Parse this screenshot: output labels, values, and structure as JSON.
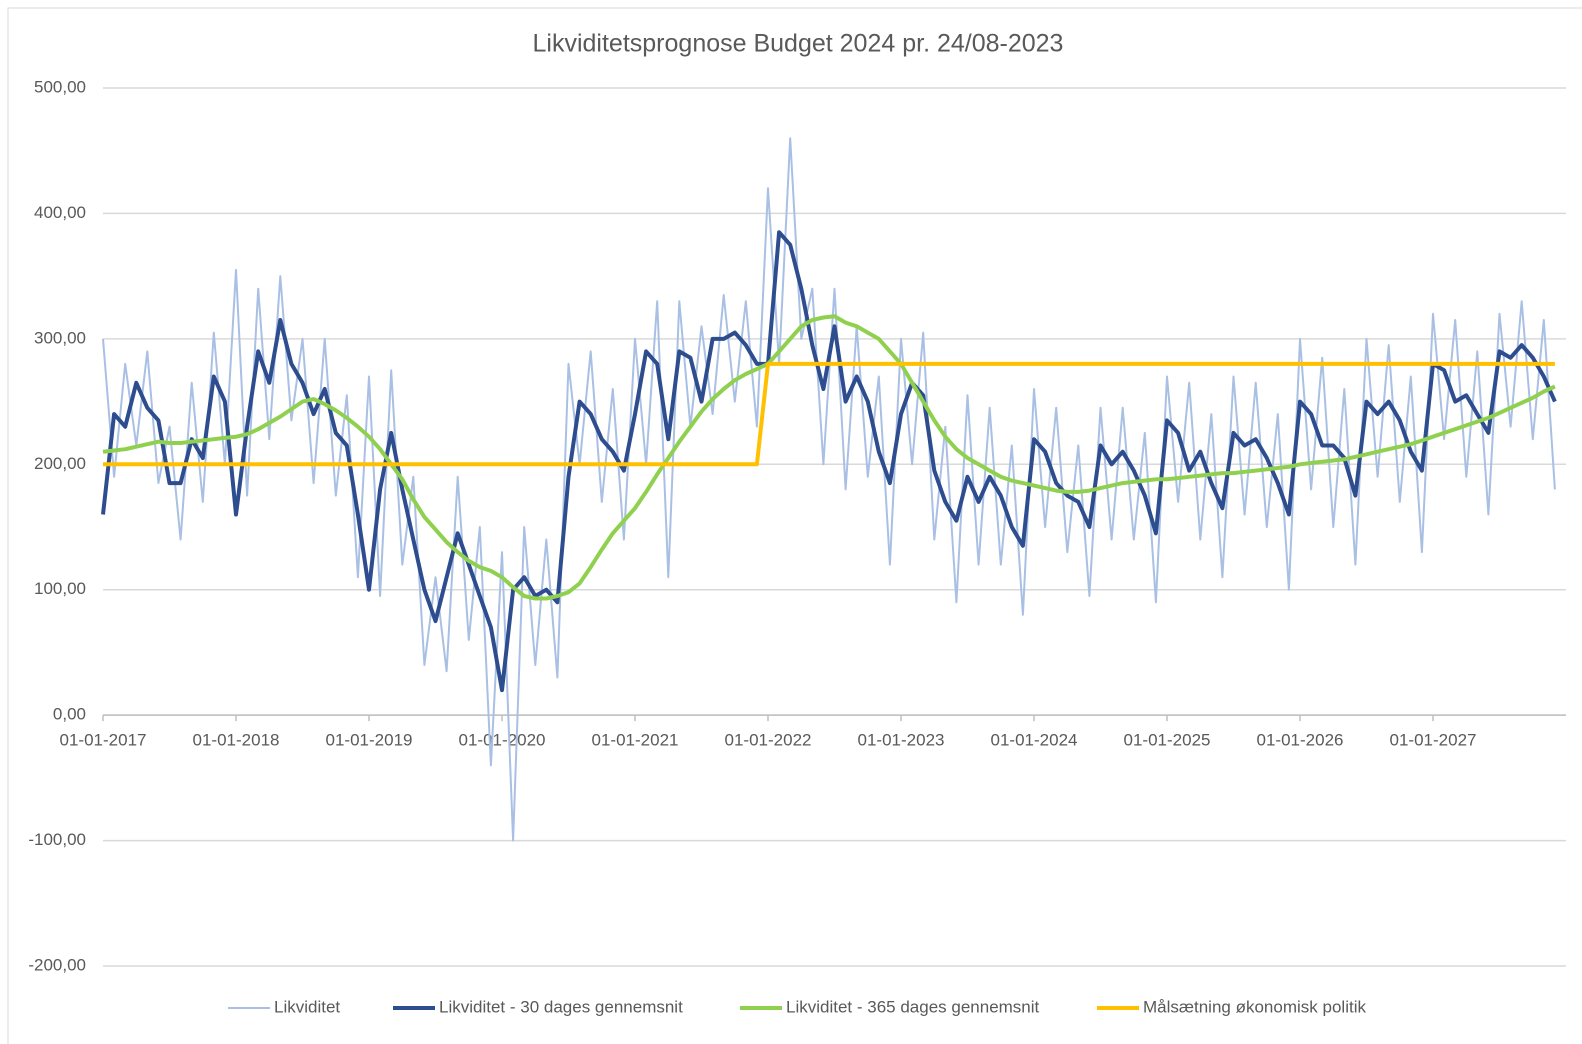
{
  "chart_data": {
    "type": "line",
    "title": "Likviditetsprognose Budget 2024 pr. 24/08-2023",
    "x": [
      "01-01-2017",
      "01-02-2017",
      "01-03-2017",
      "01-04-2017",
      "01-05-2017",
      "01-06-2017",
      "01-07-2017",
      "01-08-2017",
      "01-09-2017",
      "01-10-2017",
      "01-11-2017",
      "01-12-2017",
      "01-01-2018",
      "01-02-2018",
      "01-03-2018",
      "01-04-2018",
      "01-05-2018",
      "01-06-2018",
      "01-07-2018",
      "01-08-2018",
      "01-09-2018",
      "01-10-2018",
      "01-11-2018",
      "01-12-2018",
      "01-01-2019",
      "01-02-2019",
      "01-03-2019",
      "01-04-2019",
      "01-05-2019",
      "01-06-2019",
      "01-07-2019",
      "01-08-2019",
      "01-09-2019",
      "01-10-2019",
      "01-11-2019",
      "01-12-2019",
      "01-01-2020",
      "01-02-2020",
      "01-03-2020",
      "01-04-2020",
      "01-05-2020",
      "01-06-2020",
      "01-07-2020",
      "01-08-2020",
      "01-09-2020",
      "01-10-2020",
      "01-11-2020",
      "01-12-2020",
      "01-01-2021",
      "01-02-2021",
      "01-03-2021",
      "01-04-2021",
      "01-05-2021",
      "01-06-2021",
      "01-07-2021",
      "01-08-2021",
      "01-09-2021",
      "01-10-2021",
      "01-11-2021",
      "01-12-2021",
      "01-01-2022",
      "01-02-2022",
      "01-03-2022",
      "01-04-2022",
      "01-05-2022",
      "01-06-2022",
      "01-07-2022",
      "01-08-2022",
      "01-09-2022",
      "01-10-2022",
      "01-11-2022",
      "01-12-2022",
      "01-01-2023",
      "01-02-2023",
      "01-03-2023",
      "01-04-2023",
      "01-05-2023",
      "01-06-2023",
      "01-07-2023",
      "01-08-2023",
      "01-09-2023",
      "01-10-2023",
      "01-11-2023",
      "01-12-2023",
      "01-01-2024",
      "01-02-2024",
      "01-03-2024",
      "01-04-2024",
      "01-05-2024",
      "01-06-2024",
      "01-07-2024",
      "01-08-2024",
      "01-09-2024",
      "01-10-2024",
      "01-11-2024",
      "01-12-2024",
      "01-01-2025",
      "01-02-2025",
      "01-03-2025",
      "01-04-2025",
      "01-05-2025",
      "01-06-2025",
      "01-07-2025",
      "01-08-2025",
      "01-09-2025",
      "01-10-2025",
      "01-11-2025",
      "01-12-2025",
      "01-01-2026",
      "01-02-2026",
      "01-03-2026",
      "01-04-2026",
      "01-05-2026",
      "01-06-2026",
      "01-07-2026",
      "01-08-2026",
      "01-09-2026",
      "01-10-2026",
      "01-11-2026",
      "01-12-2026",
      "01-01-2027",
      "01-02-2027",
      "01-03-2027",
      "01-04-2027",
      "01-05-2027",
      "01-06-2027",
      "01-07-2027",
      "01-08-2027",
      "01-09-2027",
      "01-10-2027",
      "01-11-2027",
      "01-12-2027"
    ],
    "series": [
      {
        "name": "Likviditet",
        "color": "#a9c0e4",
        "width": 2,
        "values": [
          300,
          190,
          280,
          215,
          290,
          185,
          230,
          140,
          265,
          170,
          305,
          200,
          355,
          175,
          340,
          220,
          350,
          235,
          300,
          185,
          300,
          175,
          255,
          110,
          270,
          95,
          275,
          120,
          190,
          40,
          110,
          35,
          190,
          60,
          150,
          -40,
          130,
          -100,
          150,
          40,
          140,
          30,
          280,
          200,
          290,
          170,
          260,
          140,
          300,
          200,
          330,
          110,
          330,
          230,
          310,
          240,
          335,
          250,
          330,
          230,
          420,
          280,
          460,
          300,
          340,
          200,
          340,
          180,
          310,
          190,
          270,
          120,
          300,
          200,
          305,
          140,
          230,
          90,
          255,
          120,
          245,
          120,
          215,
          80,
          260,
          150,
          245,
          130,
          215,
          95,
          245,
          140,
          245,
          140,
          225,
          90,
          270,
          170,
          265,
          140,
          240,
          110,
          270,
          160,
          265,
          150,
          240,
          100,
          300,
          180,
          285,
          150,
          260,
          120,
          300,
          190,
          295,
          170,
          270,
          130,
          320,
          220,
          315,
          190,
          290,
          160,
          320,
          230,
          330,
          220,
          315,
          180
        ]
      },
      {
        "name": "Likviditet - 30 dages gennemsnit",
        "color": "#2e4d8f",
        "width": 4,
        "values": [
          160,
          240,
          230,
          265,
          245,
          235,
          185,
          185,
          220,
          205,
          270,
          250,
          160,
          230,
          290,
          265,
          315,
          280,
          265,
          240,
          260,
          225,
          215,
          160,
          100,
          180,
          225,
          180,
          140,
          100,
          75,
          110,
          145,
          120,
          95,
          70,
          20,
          100,
          110,
          95,
          100,
          90,
          190,
          250,
          240,
          220,
          210,
          195,
          240,
          290,
          280,
          220,
          290,
          285,
          250,
          300,
          300,
          305,
          295,
          280,
          280,
          385,
          375,
          340,
          295,
          260,
          310,
          250,
          270,
          250,
          210,
          185,
          240,
          265,
          255,
          195,
          170,
          155,
          190,
          170,
          190,
          175,
          150,
          135,
          220,
          210,
          185,
          175,
          170,
          150,
          215,
          200,
          210,
          195,
          175,
          145,
          235,
          225,
          195,
          210,
          185,
          165,
          225,
          215,
          220,
          205,
          185,
          160,
          250,
          240,
          215,
          215,
          205,
          175,
          250,
          240,
          250,
          235,
          210,
          195,
          280,
          275,
          250,
          255,
          240,
          225,
          290,
          285,
          295,
          285,
          270,
          250
        ]
      },
      {
        "name": "Likviditet - 365 dages gennemsnit",
        "color": "#8fd14f",
        "width": 4,
        "values": [
          210,
          211,
          212,
          214,
          216,
          218,
          217,
          217,
          218,
          219,
          220,
          221,
          222,
          224,
          228,
          233,
          238,
          244,
          250,
          252,
          248,
          243,
          237,
          230,
          222,
          212,
          200,
          188,
          172,
          158,
          148,
          138,
          130,
          123,
          118,
          115,
          110,
          102,
          95,
          93,
          93,
          95,
          98,
          105,
          118,
          132,
          145,
          155,
          165,
          178,
          192,
          205,
          218,
          230,
          242,
          252,
          260,
          267,
          272,
          276,
          280,
          290,
          300,
          310,
          315,
          317,
          318,
          313,
          310,
          305,
          300,
          290,
          280,
          265,
          250,
          235,
          222,
          212,
          205,
          200,
          195,
          190,
          187,
          185,
          183,
          181,
          179,
          178,
          178,
          179,
          181,
          183,
          185,
          186,
          187,
          188,
          188,
          189,
          190,
          191,
          192,
          193,
          193,
          194,
          195,
          196,
          197,
          198,
          200,
          201,
          202,
          203,
          204,
          206,
          208,
          210,
          212,
          214,
          216,
          219,
          222,
          225,
          228,
          231,
          234,
          237,
          241,
          245,
          249,
          253,
          258,
          262
        ]
      },
      {
        "name": "Målsætning økonomisk politik",
        "color": "#ffc000",
        "width": 4,
        "values": [
          200,
          200,
          200,
          200,
          200,
          200,
          200,
          200,
          200,
          200,
          200,
          200,
          200,
          200,
          200,
          200,
          200,
          200,
          200,
          200,
          200,
          200,
          200,
          200,
          200,
          200,
          200,
          200,
          200,
          200,
          200,
          200,
          200,
          200,
          200,
          200,
          200,
          200,
          200,
          200,
          200,
          200,
          200,
          200,
          200,
          200,
          200,
          200,
          200,
          200,
          200,
          200,
          200,
          200,
          200,
          200,
          200,
          200,
          200,
          200,
          280,
          280,
          280,
          280,
          280,
          280,
          280,
          280,
          280,
          280,
          280,
          280,
          280,
          280,
          280,
          280,
          280,
          280,
          280,
          280,
          280,
          280,
          280,
          280,
          280,
          280,
          280,
          280,
          280,
          280,
          280,
          280,
          280,
          280,
          280,
          280,
          280,
          280,
          280,
          280,
          280,
          280,
          280,
          280,
          280,
          280,
          280,
          280,
          280,
          280,
          280,
          280,
          280,
          280,
          280,
          280,
          280,
          280,
          280,
          280,
          280,
          280,
          280,
          280,
          280,
          280,
          280,
          280,
          280,
          280,
          280,
          280
        ]
      }
    ],
    "xlim": [
      "01-01-2017",
      "01-01-2028"
    ],
    "xticks": [
      "01-01-2017",
      "01-01-2018",
      "01-01-2019",
      "01-01-2020",
      "01-01-2021",
      "01-01-2022",
      "01-01-2023",
      "01-01-2024",
      "01-01-2025",
      "01-01-2026",
      "01-01-2027"
    ],
    "ylim": [
      -200,
      500
    ],
    "yticks": [
      {
        "value": -200,
        "label": "-200,00"
      },
      {
        "value": -100,
        "label": "-100,00"
      },
      {
        "value": 0,
        "label": "0,00"
      },
      {
        "value": 100,
        "label": "100,00"
      },
      {
        "value": 200,
        "label": "200,00"
      },
      {
        "value": 300,
        "label": "300,00"
      },
      {
        "value": 400,
        "label": "400,00"
      },
      {
        "value": 500,
        "label": "500,00"
      }
    ],
    "grid": true,
    "legend": "bottom"
  }
}
